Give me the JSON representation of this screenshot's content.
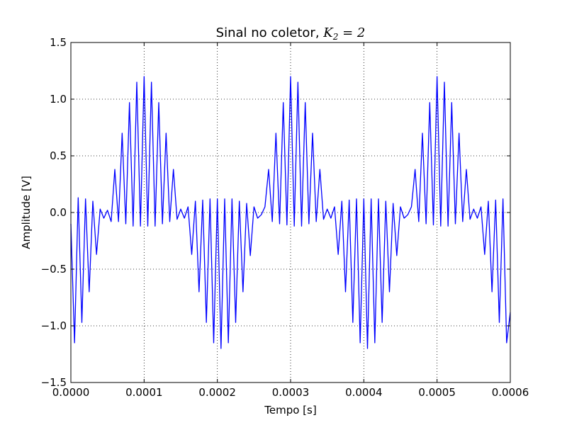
{
  "chart_data": {
    "type": "line",
    "title": "Sinal no coletor, ",
    "title_math": "K",
    "title_math_sub": "2",
    "title_math_rest": " = 2",
    "xlabel": "Tempo [s]",
    "ylabel": "Amplitude [V]",
    "xlim": [
      0,
      0.0006
    ],
    "ylim": [
      -1.5,
      1.5
    ],
    "x_ticks": [
      0,
      0.0001,
      0.0002,
      0.0003,
      0.0004,
      0.0005,
      0.0006
    ],
    "x_tick_labels": [
      "0.0000",
      "0.0001",
      "0.0002",
      "0.0003",
      "0.0004",
      "0.0005",
      "0.0006"
    ],
    "y_ticks": [
      -1.5,
      -1.0,
      -0.5,
      0.0,
      0.5,
      1.0,
      1.5
    ],
    "y_tick_labels": [
      "−1.5",
      "−1.0",
      "−0.5",
      "0.0",
      "0.5",
      "1.0",
      "1.5"
    ],
    "grid": true,
    "line_color": "#0000ff",
    "series": [
      {
        "x": [
          0,
          5e-06,
          1e-05,
          1.5e-05,
          2e-05,
          2.5e-05,
          3e-05,
          3.5e-05,
          4e-05,
          4.5e-05,
          5e-05,
          5.5e-05,
          6e-05,
          6.5e-05,
          7e-05,
          7.5e-05,
          8e-05,
          8.5e-05,
          9e-05,
          9.5e-05,
          0.0001,
          0.000105,
          0.00011,
          0.000115,
          0.00012,
          0.000125,
          0.00013,
          0.000135,
          0.00014,
          0.000145,
          0.00015,
          0.000155,
          0.00016,
          0.000165,
          0.00017,
          0.000175,
          0.00018,
          0.000185,
          0.00019,
          0.000195,
          0.0002,
          0.000205,
          0.00021,
          0.000215,
          0.00022,
          0.000225,
          0.00023,
          0.000235,
          0.00024,
          0.000245,
          0.00025,
          0.000255,
          0.00026,
          0.000265,
          0.00027,
          0.000275,
          0.00028,
          0.000285,
          0.00029,
          0.000295,
          0.0003,
          0.000305,
          0.00031,
          0.000315,
          0.00032,
          0.000325,
          0.00033,
          0.000335,
          0.00034,
          0.000345,
          0.00035,
          0.000355,
          0.00036,
          0.000365,
          0.00037,
          0.000375,
          0.00038,
          0.000385,
          0.00039,
          0.000395,
          0.0004,
          0.000405,
          0.00041,
          0.000415,
          0.00042,
          0.000425,
          0.00043,
          0.000435,
          0.00044,
          0.000445,
          0.00045,
          0.000455,
          0.00046,
          0.000465,
          0.00047,
          0.000475,
          0.00048,
          0.000485,
          0.00049,
          0.000495,
          0.0005,
          0.000505,
          0.00051,
          0.000515,
          0.00052,
          0.000525,
          0.00053,
          0.000535,
          0.00054,
          0.000545,
          0.00055,
          0.000555,
          0.00056,
          0.000565,
          0.00057,
          0.000575,
          0.00058,
          0.000585,
          0.00059,
          0.000595,
          0.0006
        ],
        "values": [
          -0.1,
          -1.15,
          0.13,
          -0.97,
          0.12,
          -0.7,
          0.1,
          -0.37,
          0.03,
          -0.05,
          0.02,
          -0.08,
          0.38,
          -0.08,
          0.7,
          -0.1,
          0.97,
          -0.12,
          1.15,
          -0.12,
          1.2,
          -0.12,
          1.15,
          -0.12,
          0.97,
          -0.1,
          0.7,
          -0.08,
          0.38,
          -0.06,
          0.03,
          -0.05,
          0.05,
          -0.37,
          0.1,
          -0.7,
          0.11,
          -0.97,
          0.12,
          -1.15,
          0.12,
          -1.2,
          0.12,
          -1.15,
          0.12,
          -0.97,
          0.1,
          -0.7,
          0.08,
          -0.38,
          0.05,
          -0.05,
          -0.02,
          0.05,
          0.38,
          -0.08,
          0.7,
          -0.1,
          0.97,
          -0.11,
          1.2,
          -0.12,
          1.15,
          -0.12,
          0.97,
          -0.1,
          0.7,
          -0.08,
          0.38,
          -0.06,
          0.03,
          -0.05,
          0.05,
          -0.37,
          0.1,
          -0.7,
          0.11,
          -0.97,
          0.12,
          -1.15,
          0.12,
          -1.2,
          0.12,
          -1.15,
          0.12,
          -0.97,
          0.1,
          -0.7,
          0.08,
          -0.38,
          0.05,
          -0.05,
          -0.02,
          0.05,
          0.38,
          -0.08,
          0.7,
          -0.1,
          0.97,
          -0.11,
          1.2,
          -0.12,
          1.15,
          -0.12,
          0.97,
          -0.1,
          0.7,
          -0.08,
          0.38,
          -0.06,
          0.03,
          -0.05,
          0.05,
          -0.37,
          0.1,
          -0.7,
          0.11,
          -0.97,
          0.12,
          -1.15,
          -0.88
        ]
      }
    ]
  }
}
